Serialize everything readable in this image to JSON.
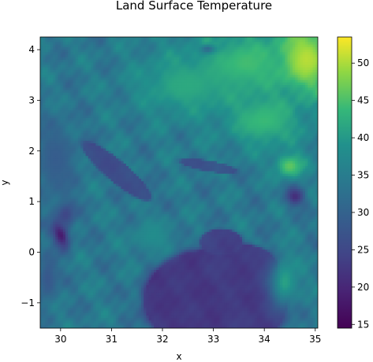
{
  "chart_data": {
    "type": "heatmap",
    "title": "Land Surface Temperature",
    "xlabel": "x",
    "ylabel": "y",
    "xlim": [
      29.6,
      35.05
    ],
    "ylim": [
      -1.5,
      4.25
    ],
    "x_ticks": [
      30,
      31,
      32,
      33,
      34,
      35
    ],
    "y_ticks": [
      -1,
      0,
      1,
      2,
      3,
      4
    ],
    "x_tick_labels": [
      "30",
      "31",
      "32",
      "33",
      "34",
      "35"
    ],
    "y_tick_labels": [
      "−1",
      "0",
      "1",
      "2",
      "3",
      "4"
    ],
    "colormap": "viridis",
    "colorbar": {
      "min": 14.5,
      "max": 53.5,
      "ticks": [
        15,
        20,
        25,
        30,
        35,
        40,
        45,
        50
      ],
      "tick_labels": [
        "15",
        "20",
        "25",
        "30",
        "35",
        "40",
        "45",
        "50"
      ]
    },
    "field": {
      "background": 34,
      "features": [
        {
          "kind": "lake",
          "name_hint": "large lake south-east",
          "cx": 33.05,
          "cy": -0.95,
          "rx": 1.4,
          "ry": 1.0,
          "value": 22.5
        },
        {
          "kind": "lake",
          "cx": 32.55,
          "cy": -0.7,
          "rx": 0.6,
          "ry": 0.65,
          "value": 22.5
        },
        {
          "kind": "lake",
          "cx": 33.5,
          "cy": -0.3,
          "rx": 0.75,
          "ry": 0.45,
          "value": 23
        },
        {
          "kind": "lake",
          "cx": 33.7,
          "cy": -1.3,
          "rx": 0.55,
          "ry": 0.35,
          "value": 23
        },
        {
          "kind": "lake",
          "cx": 33.15,
          "cy": 0.2,
          "rx": 0.4,
          "ry": 0.25,
          "value": 24
        },
        {
          "kind": "lake",
          "name_hint": "elongated north-east lake",
          "cx": 31.1,
          "cy": 1.6,
          "rx": 0.85,
          "ry": 0.2,
          "angle": -40,
          "value": 26
        },
        {
          "kind": "lake",
          "cx": 32.9,
          "cy": 1.7,
          "rx": 0.55,
          "ry": 0.1,
          "angle": -10,
          "value": 27
        },
        {
          "kind": "cold",
          "name_hint": "western mountains",
          "cx": 30.0,
          "cy": 0.35,
          "rx": 0.18,
          "ry": 0.35,
          "angle": 20,
          "value": 17
        },
        {
          "kind": "cold",
          "cx": 30.1,
          "cy": 0.75,
          "rx": 0.22,
          "ry": 0.3,
          "value": 24
        },
        {
          "kind": "cold",
          "name_hint": "eastern peak",
          "cx": 34.6,
          "cy": 1.1,
          "rx": 0.22,
          "ry": 0.22,
          "value": 21
        },
        {
          "kind": "cold",
          "cx": 32.9,
          "cy": 4.0,
          "rx": 0.18,
          "ry": 0.1,
          "value": 22
        },
        {
          "kind": "cool",
          "cx": 29.9,
          "cy": 1.8,
          "rx": 0.5,
          "ry": 1.0,
          "value": 29
        },
        {
          "kind": "cool",
          "cx": 29.75,
          "cy": -0.5,
          "rx": 0.25,
          "ry": 0.6,
          "value": 28
        },
        {
          "kind": "warm",
          "cx": 34.8,
          "cy": 3.8,
          "rx": 0.6,
          "ry": 0.7,
          "value": 51
        },
        {
          "kind": "warm",
          "cx": 33.6,
          "cy": 3.7,
          "rx": 0.9,
          "ry": 0.6,
          "value": 45
        },
        {
          "kind": "warm",
          "cx": 32.5,
          "cy": 3.3,
          "rx": 1.2,
          "ry": 0.7,
          "value": 42
        },
        {
          "kind": "warm",
          "cx": 34.0,
          "cy": 2.6,
          "rx": 0.8,
          "ry": 0.6,
          "value": 44
        },
        {
          "kind": "warm",
          "cx": 34.5,
          "cy": 1.7,
          "rx": 0.35,
          "ry": 0.3,
          "value": 46
        },
        {
          "kind": "warm",
          "cx": 34.4,
          "cy": -0.6,
          "rx": 0.35,
          "ry": 0.6,
          "value": 41
        },
        {
          "kind": "warm",
          "cx": 31.8,
          "cy": 0.3,
          "rx": 0.5,
          "ry": 0.4,
          "value": 38
        }
      ]
    }
  }
}
